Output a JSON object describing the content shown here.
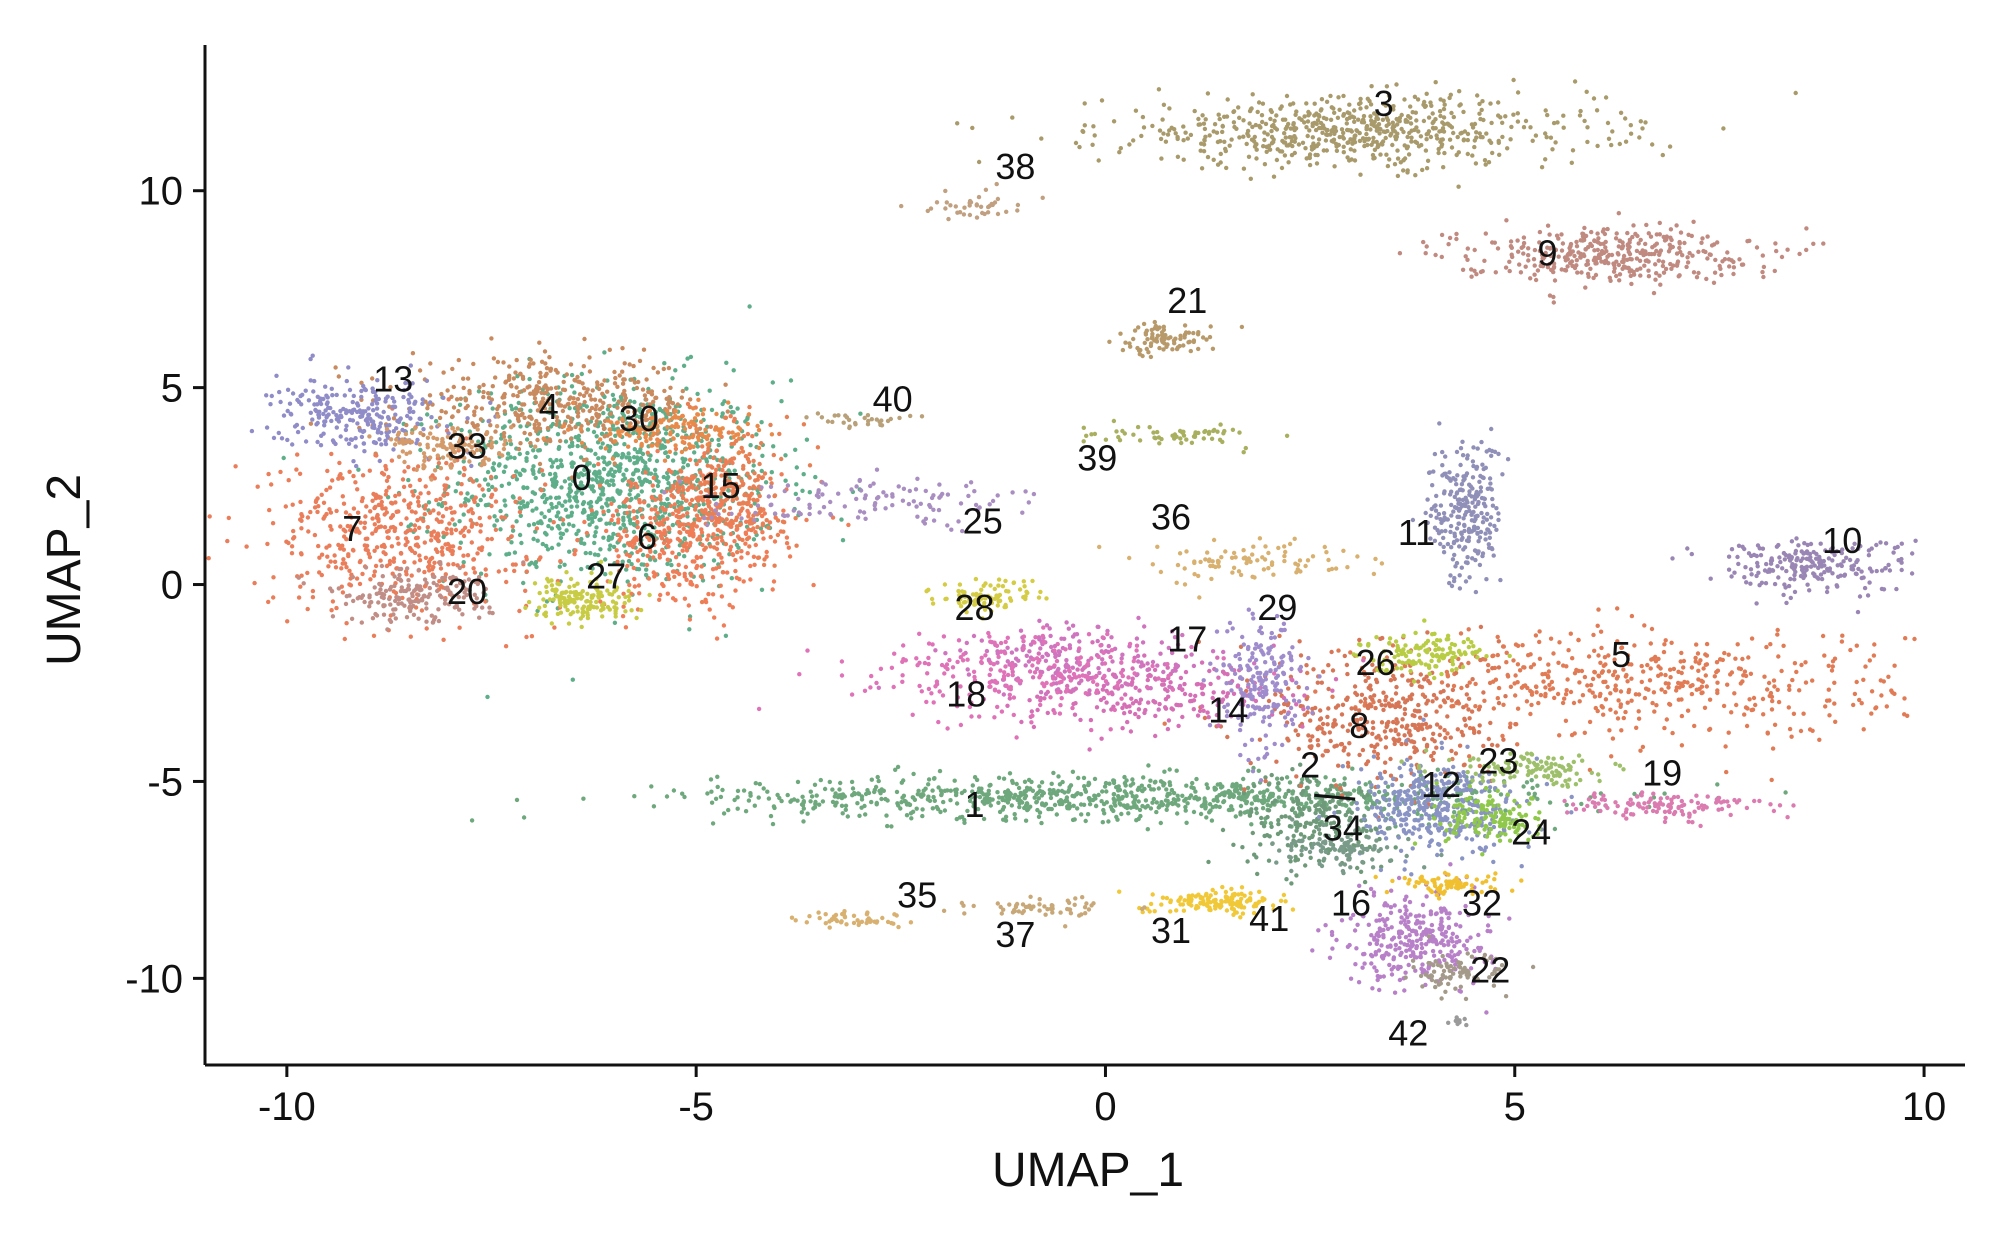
{
  "chart_data": {
    "type": "scatter",
    "xlabel": "UMAP_1",
    "ylabel": "UMAP_2",
    "xlim": [
      -11,
      10.5
    ],
    "ylim": [
      -12.2,
      13.7
    ],
    "xticks": [
      -10,
      -5,
      0,
      5,
      10
    ],
    "yticks": [
      -10,
      -5,
      0,
      5,
      10
    ],
    "xtick_labels": [
      "-10",
      "-5",
      "0",
      "5",
      "10"
    ],
    "ytick_labels": [
      "-10",
      "-5",
      "0",
      "5",
      "10"
    ],
    "grid": false,
    "legend": "none",
    "clusters": [
      {
        "name": "0",
        "label_pos": [
          -6.4,
          2.4
        ],
        "color": "#5fae8a",
        "cx": -6.0,
        "cy": 2.6,
        "sx": 1.0,
        "sy": 1.3,
        "n": 1100
      },
      {
        "name": "1",
        "label_pos": [
          -1.6,
          -5.9
        ],
        "color": "#6ea87c",
        "cx": 0.3,
        "cy": -5.4,
        "sx": 2.5,
        "sy": 0.28,
        "n": 900
      },
      {
        "name": "2",
        "label_pos": [
          2.5,
          -4.9
        ],
        "color": "#6f9a7a",
        "cx": 2.6,
        "cy": -6.0,
        "sx": 0.5,
        "sy": 0.6,
        "n": 220
      },
      {
        "name": "3",
        "label_pos": [
          3.4,
          11.9
        ],
        "color": "#a89a6b",
        "cx": 3.0,
        "cy": 11.5,
        "sx": 1.5,
        "sy": 0.45,
        "n": 650
      },
      {
        "name": "4",
        "label_pos": [
          -6.8,
          4.2
        ],
        "color": "#c88a5e",
        "cx": -6.7,
        "cy": 4.6,
        "sx": 0.9,
        "sy": 0.55,
        "n": 400
      },
      {
        "name": "5",
        "label_pos": [
          6.3,
          -2.1
        ],
        "color": "#e07b55",
        "cx": 6.5,
        "cy": -2.5,
        "sx": 1.6,
        "sy": 0.7,
        "n": 500
      },
      {
        "name": "6",
        "label_pos": [
          -5.6,
          0.9
        ],
        "color": "#f07d57",
        "cx": -5.1,
        "cy": 1.2,
        "sx": 0.6,
        "sy": 0.9,
        "n": 400
      },
      {
        "name": "7",
        "label_pos": [
          -9.2,
          1.1
        ],
        "color": "#ea7d5a",
        "cx": -8.6,
        "cy": 1.4,
        "sx": 0.8,
        "sy": 1.0,
        "n": 520
      },
      {
        "name": "8",
        "label_pos": [
          3.1,
          -3.9
        ],
        "color": "#d67657",
        "cx": 3.4,
        "cy": -3.4,
        "sx": 0.7,
        "sy": 0.9,
        "n": 380
      },
      {
        "name": "9",
        "label_pos": [
          5.4,
          8.1
        ],
        "color": "#c08a80",
        "cx": 6.1,
        "cy": 8.4,
        "sx": 0.9,
        "sy": 0.35,
        "n": 380
      },
      {
        "name": "10",
        "label_pos": [
          9.0,
          0.8
        ],
        "color": "#9a86b4",
        "cx": 8.6,
        "cy": 0.5,
        "sx": 0.6,
        "sy": 0.35,
        "n": 220
      },
      {
        "name": "11",
        "label_pos": [
          3.8,
          1.0
        ],
        "color": "#8f8fb8",
        "cx": 4.4,
        "cy": 1.8,
        "sx": 0.22,
        "sy": 0.9,
        "n": 260
      },
      {
        "name": "12",
        "label_pos": [
          4.1,
          -5.4
        ],
        "color": "#8a94c4",
        "cx": 4.1,
        "cy": -5.7,
        "sx": 0.5,
        "sy": 0.6,
        "n": 380
      },
      {
        "name": "13",
        "label_pos": [
          -8.7,
          4.9
        ],
        "color": "#8f8cc8",
        "cx": -9.1,
        "cy": 4.3,
        "sx": 0.5,
        "sy": 0.45,
        "n": 260
      },
      {
        "name": "14",
        "label_pos": [
          1.5,
          -3.5
        ],
        "color": "#d670b6",
        "cx": 0.6,
        "cy": -2.8,
        "sx": 0.9,
        "sy": 0.45,
        "n": 220
      },
      {
        "name": "15",
        "label_pos": [
          -4.7,
          2.2
        ],
        "color": "#e88055",
        "cx": -4.6,
        "cy": 2.5,
        "sx": 0.35,
        "sy": 0.9,
        "n": 250
      },
      {
        "name": "16",
        "label_pos": [
          3.0,
          -8.4
        ],
        "color": "#b780c8",
        "cx": 3.8,
        "cy": -9.0,
        "sx": 0.45,
        "sy": 0.6,
        "n": 320
      },
      {
        "name": "17",
        "label_pos": [
          1.0,
          -1.7
        ],
        "color": "#cf74bf",
        "cx": -0.3,
        "cy": -1.9,
        "sx": 0.8,
        "sy": 0.45,
        "n": 200
      },
      {
        "name": "18",
        "label_pos": [
          -1.7,
          -3.1
        ],
        "color": "#e072b8",
        "cx": -1.0,
        "cy": -2.3,
        "sx": 1.0,
        "sy": 0.55,
        "n": 230
      },
      {
        "name": "19",
        "label_pos": [
          6.8,
          -5.1
        ],
        "color": "#db7cb0",
        "cx": 6.8,
        "cy": -5.6,
        "sx": 0.6,
        "sy": 0.18,
        "n": 120
      },
      {
        "name": "20",
        "label_pos": [
          -7.8,
          -0.5
        ],
        "color": "#c08e86",
        "cx": -8.5,
        "cy": -0.3,
        "sx": 0.5,
        "sy": 0.35,
        "n": 180
      },
      {
        "name": "21",
        "label_pos": [
          1.0,
          6.9
        ],
        "color": "#b89a6a",
        "cx": 0.7,
        "cy": 6.2,
        "sx": 0.3,
        "sy": 0.2,
        "n": 90
      },
      {
        "name": "22",
        "label_pos": [
          4.7,
          -10.1
        ],
        "color": "#a49a8a",
        "cx": 4.3,
        "cy": -9.9,
        "sx": 0.3,
        "sy": 0.25,
        "n": 80
      },
      {
        "name": "23",
        "label_pos": [
          4.8,
          -4.8
        ],
        "color": "#9ec06a",
        "cx": 5.2,
        "cy": -4.7,
        "sx": 0.5,
        "sy": 0.2,
        "n": 120
      },
      {
        "name": "24",
        "label_pos": [
          5.2,
          -6.6
        ],
        "color": "#8fc84a",
        "cx": 4.8,
        "cy": -6.0,
        "sx": 0.35,
        "sy": 0.3,
        "n": 130
      },
      {
        "name": "25",
        "label_pos": [
          -1.5,
          1.3
        ],
        "color": "#a98ec2",
        "cx": -2.9,
        "cy": 2.1,
        "sx": 1.0,
        "sy": 0.3,
        "n": 120
      },
      {
        "name": "26",
        "label_pos": [
          3.3,
          -2.3
        ],
        "color": "#b8cc44",
        "cx": 3.9,
        "cy": -1.7,
        "sx": 0.4,
        "sy": 0.25,
        "n": 130
      },
      {
        "name": "27",
        "label_pos": [
          -6.1,
          -0.1
        ],
        "color": "#c8cc44",
        "cx": -6.4,
        "cy": -0.4,
        "sx": 0.3,
        "sy": 0.3,
        "n": 150
      },
      {
        "name": "28",
        "label_pos": [
          -1.6,
          -0.9
        ],
        "color": "#d4cc44",
        "cx": -1.4,
        "cy": -0.3,
        "sx": 0.35,
        "sy": 0.2,
        "n": 90
      },
      {
        "name": "29",
        "label_pos": [
          2.1,
          -0.9
        ],
        "color": "#9e8ccc",
        "cx": 1.9,
        "cy": -2.5,
        "sx": 0.25,
        "sy": 0.8,
        "n": 200
      },
      {
        "name": "30",
        "label_pos": [
          -5.7,
          3.9
        ],
        "color": "#e88a4a",
        "cx": -5.3,
        "cy": 3.9,
        "sx": 0.5,
        "sy": 0.3,
        "n": 150
      },
      {
        "name": "31",
        "label_pos": [
          0.8,
          -9.1
        ],
        "color": "#f0c838",
        "cx": 1.3,
        "cy": -8.1,
        "sx": 0.4,
        "sy": 0.15,
        "n": 80
      },
      {
        "name": "32",
        "label_pos": [
          4.6,
          -8.4
        ],
        "color": "#f0c030",
        "cx": 4.2,
        "cy": -7.6,
        "sx": 0.3,
        "sy": 0.12,
        "n": 80
      },
      {
        "name": "33",
        "label_pos": [
          -7.8,
          3.2
        ],
        "color": "#d49a6a",
        "cx": -8.0,
        "cy": 3.5,
        "sx": 0.4,
        "sy": 0.3,
        "n": 120
      },
      {
        "name": "34",
        "label_pos": [
          2.9,
          -6.5
        ],
        "color": "#7a9a8a",
        "cx": 2.9,
        "cy": -6.7,
        "sx": 0.4,
        "sy": 0.25,
        "n": 100
      },
      {
        "name": "35",
        "label_pos": [
          -2.3,
          -8.2
        ],
        "color": "#d8b070",
        "cx": -3.1,
        "cy": -8.5,
        "sx": 0.3,
        "sy": 0.1,
        "n": 50
      },
      {
        "name": "36",
        "label_pos": [
          0.8,
          1.4
        ],
        "color": "#d8b070",
        "cx": 1.8,
        "cy": 0.6,
        "sx": 0.6,
        "sy": 0.25,
        "n": 90
      },
      {
        "name": "37",
        "label_pos": [
          -1.1,
          -9.2
        ],
        "color": "#c8a878",
        "cx": -0.7,
        "cy": -8.2,
        "sx": 0.5,
        "sy": 0.12,
        "n": 60
      },
      {
        "name": "38",
        "label_pos": [
          -1.1,
          10.3
        ],
        "color": "#c0a080",
        "cx": -1.6,
        "cy": 9.6,
        "sx": 0.3,
        "sy": 0.2,
        "n": 40
      },
      {
        "name": "39",
        "label_pos": [
          -0.1,
          2.9
        ],
        "color": "#a8b060",
        "cx": 0.9,
        "cy": 3.8,
        "sx": 0.6,
        "sy": 0.12,
        "n": 60
      },
      {
        "name": "40",
        "label_pos": [
          -2.6,
          4.4
        ],
        "color": "#b8a078",
        "cx": -3.0,
        "cy": 4.2,
        "sx": 0.3,
        "sy": 0.1,
        "n": 30
      },
      {
        "name": "41",
        "label_pos": [
          2.0,
          -8.8
        ],
        "color": "#f0c838",
        "cx": 1.5,
        "cy": -8.0,
        "sx": 0.3,
        "sy": 0.15,
        "n": 60
      },
      {
        "name": "42",
        "label_pos": [
          3.7,
          -11.7
        ],
        "color": "#9a9a9a",
        "cx": 4.3,
        "cy": -11.1,
        "sx": 0.08,
        "sy": 0.06,
        "n": 10
      }
    ]
  }
}
